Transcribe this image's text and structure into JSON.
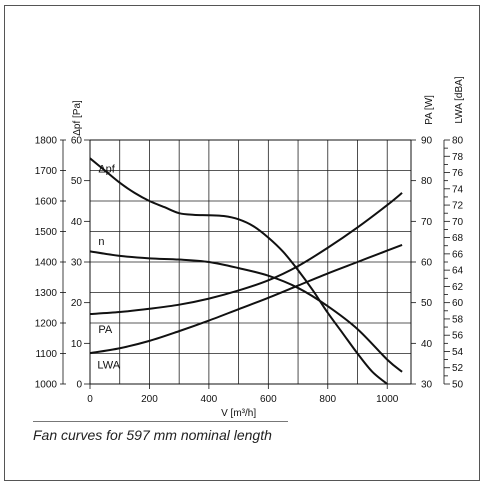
{
  "caption": "Fan  curves for 597 mm nominal length",
  "chart_data": {
    "type": "line",
    "title": "",
    "xlabel": "V [m³/h]",
    "x_ticks": [
      0,
      200,
      400,
      600,
      800,
      1000
    ],
    "xlim": [
      0,
      1080
    ],
    "axes": [
      {
        "id": "pa_main",
        "label": "",
        "ticks": [
          1000,
          1100,
          1200,
          1300,
          1400,
          1500,
          1600,
          1700,
          1800
        ],
        "ylim": [
          1000,
          1800
        ]
      },
      {
        "id": "dpf",
        "label": "Δpf [Pa]",
        "ticks": [
          0,
          10,
          20,
          30,
          40,
          50,
          60
        ],
        "ylim": [
          0,
          60
        ]
      },
      {
        "id": "pa_w",
        "label": "PA [W]",
        "ticks": [
          30,
          40,
          50,
          60,
          70,
          80,
          90
        ],
        "ylim": [
          30,
          90
        ]
      },
      {
        "id": "lwa",
        "label": "LWA [dBA]",
        "ticks": [
          50,
          51,
          52,
          53,
          54,
          55,
          56,
          57,
          58,
          59,
          60,
          61,
          62,
          63,
          64,
          65,
          66,
          67,
          68,
          69,
          70,
          71,
          72,
          73,
          74,
          75,
          76,
          77,
          78,
          79,
          80
        ],
        "tick_labels": [
          50,
          52,
          54,
          56,
          58,
          60,
          62,
          64,
          66,
          68,
          70,
          72,
          74,
          76,
          78,
          80
        ],
        "ylim": [
          50,
          80
        ]
      }
    ],
    "series": [
      {
        "name": "Δpf",
        "axis": "dpf",
        "x": [
          0,
          50,
          100,
          150,
          200,
          250,
          300,
          350,
          400,
          450,
          500,
          550,
          600,
          650,
          700,
          750,
          800,
          850,
          900,
          950,
          1000
        ],
        "y": [
          55.5,
          52.5,
          49.5,
          47,
          45,
          43.5,
          42,
          41.6,
          41.5,
          41.3,
          40.5,
          38.8,
          36,
          32.5,
          28,
          23,
          17.5,
          12.5,
          7.5,
          3,
          0
        ]
      },
      {
        "name": "n",
        "axis": "pa_main",
        "x": [
          0,
          100,
          200,
          300,
          400,
          500,
          600,
          700,
          800,
          900,
          1000,
          1050
        ],
        "y": [
          1435,
          1420,
          1412,
          1408,
          1400,
          1380,
          1355,
          1315,
          1255,
          1180,
          1080,
          1040
        ]
      },
      {
        "name": "PA",
        "axis": "pa_w",
        "x": [
          0,
          100,
          200,
          300,
          400,
          500,
          600,
          700,
          800,
          900,
          1000,
          1050
        ],
        "y": [
          47.2,
          47.7,
          48.5,
          49.5,
          51,
          53,
          55.5,
          59,
          63.5,
          68.5,
          74,
          77
        ]
      },
      {
        "name": "LWA",
        "axis": "lwa",
        "x": [
          0,
          100,
          200,
          300,
          400,
          500,
          600,
          700,
          800,
          900,
          1000,
          1050
        ],
        "y": [
          53.8,
          54.4,
          55.3,
          56.5,
          57.8,
          59.2,
          60.6,
          62.1,
          63.6,
          65,
          66.4,
          67.1
        ]
      }
    ],
    "grid": true,
    "legend": "labels on curves"
  }
}
